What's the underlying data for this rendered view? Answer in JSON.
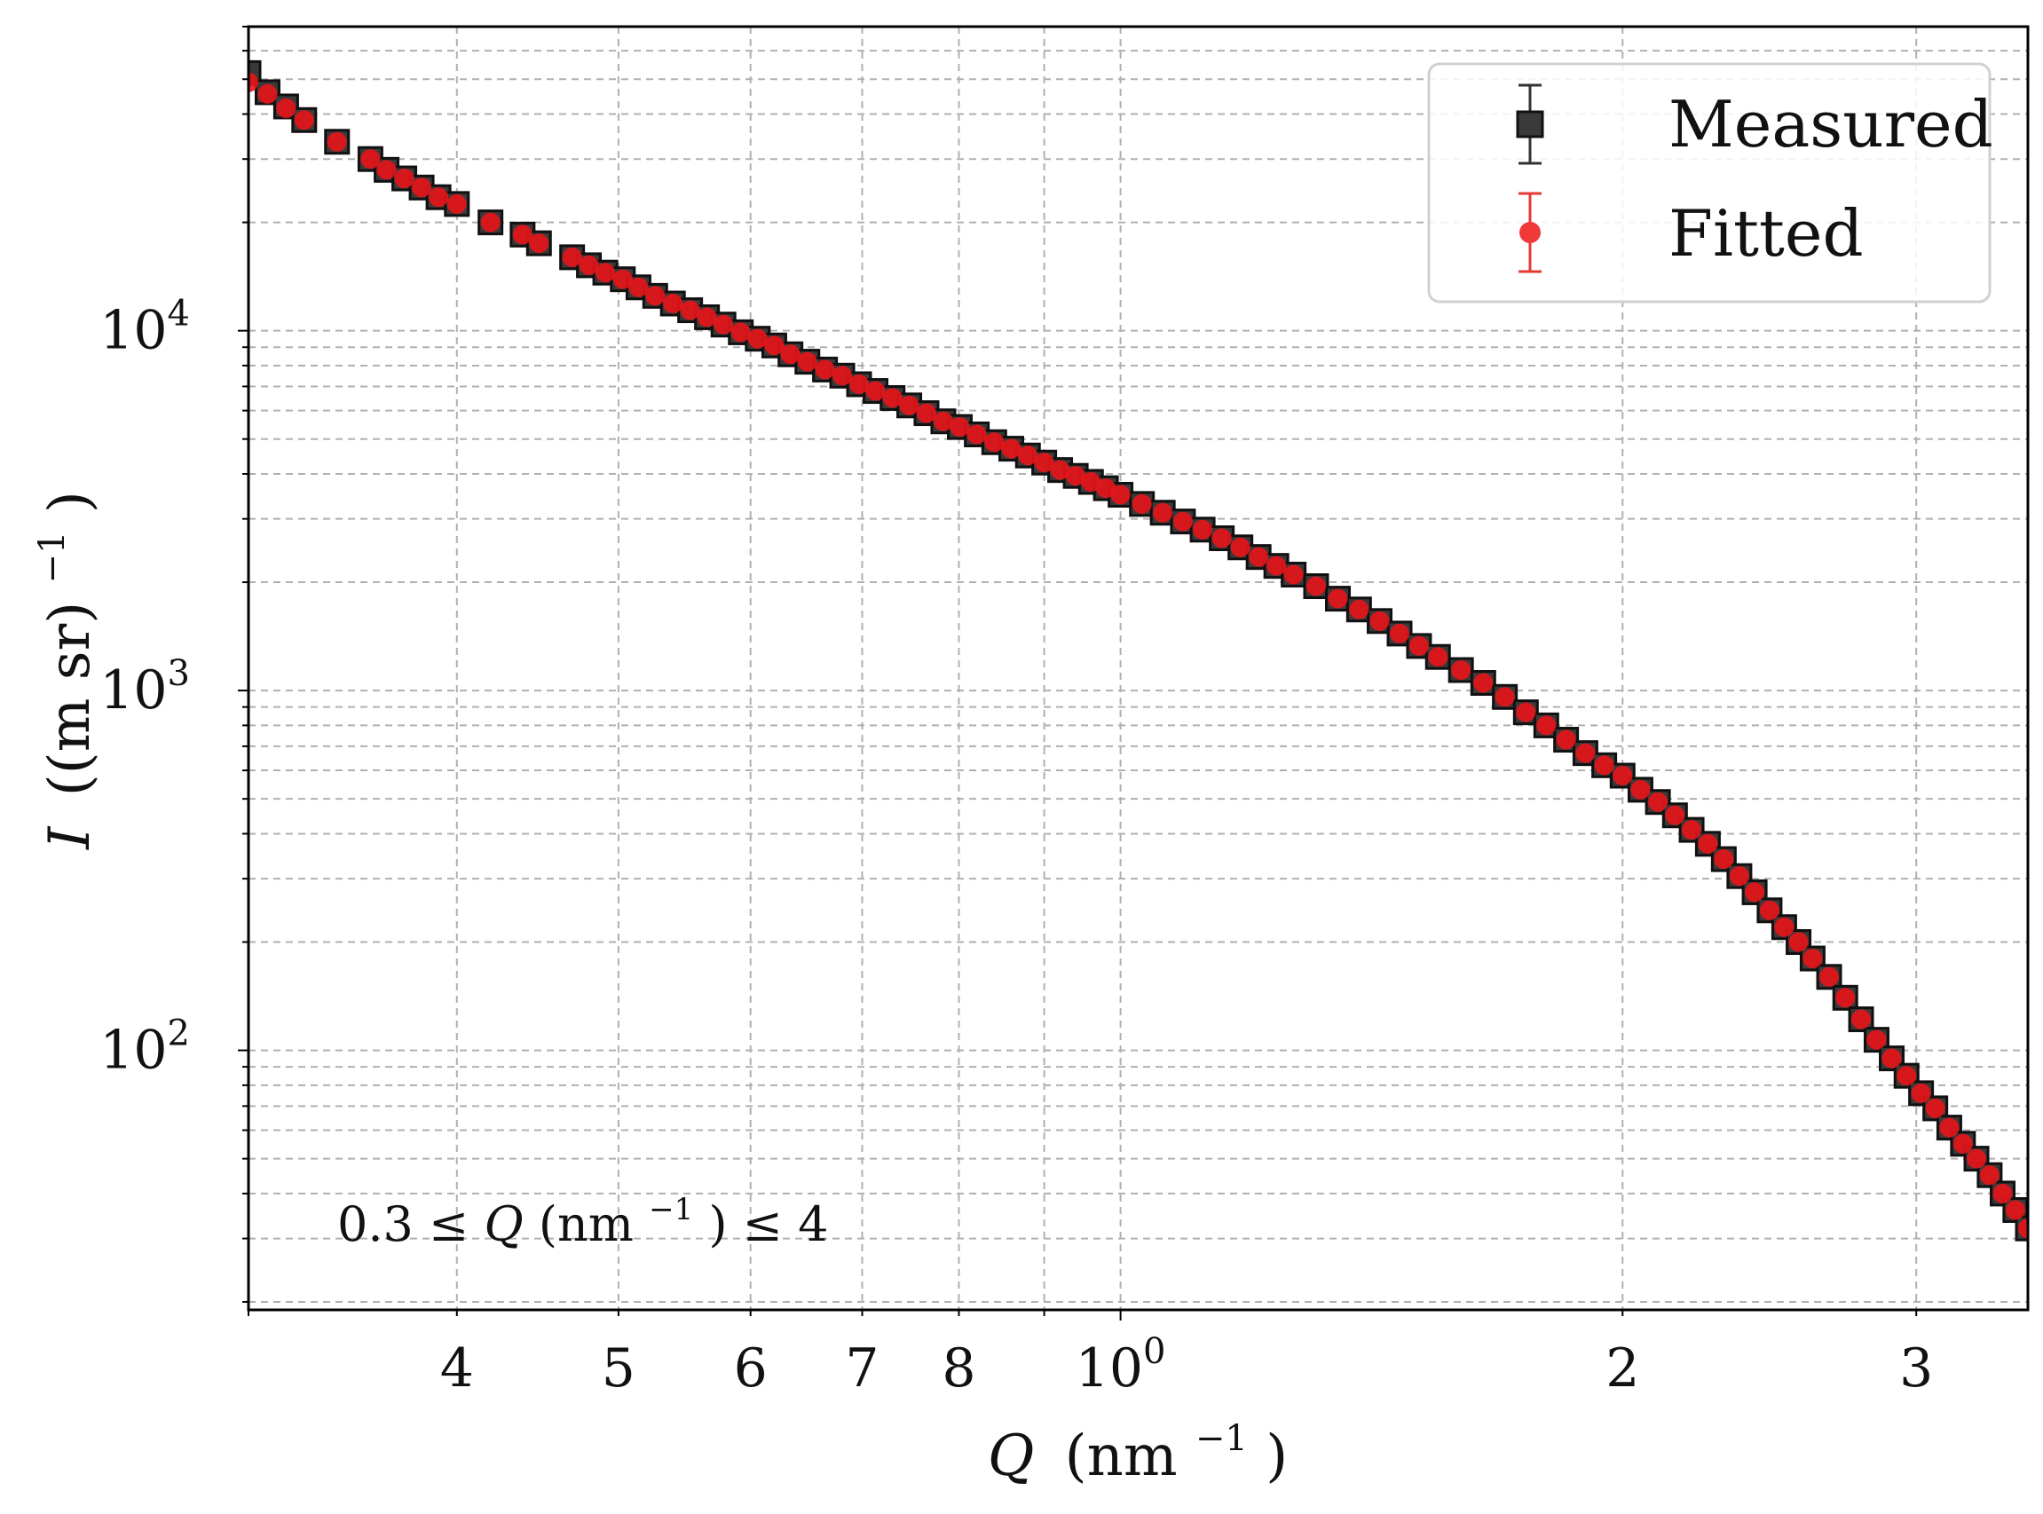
{
  "chart_data": {
    "type": "scatter",
    "xlabel": {
      "var": "Q",
      "unit": "(nm",
      "exp": "−1",
      "close": ")"
    },
    "ylabel": {
      "var": "I",
      "unit": "((m sr)",
      "exp": "−1",
      "close": ")"
    },
    "x_scale": "log",
    "y_scale": "log",
    "xlim": [
      0.3,
      3.5
    ],
    "ylim": [
      19,
      70000
    ],
    "grid": true,
    "legend_position": "top-right",
    "x_ticks": [
      {
        "value": 0.4,
        "label": "4"
      },
      {
        "value": 0.5,
        "label": "5"
      },
      {
        "value": 0.6,
        "label": "6"
      },
      {
        "value": 0.7,
        "label": "7"
      },
      {
        "value": 0.8,
        "label": "8"
      },
      {
        "value": 1.0,
        "base": "10",
        "exp": "0"
      },
      {
        "value": 2.0,
        "label": "2"
      },
      {
        "value": 3.0,
        "label": "3"
      }
    ],
    "y_ticks": [
      {
        "value": 100,
        "base": "10",
        "exp": "2"
      },
      {
        "value": 1000,
        "base": "10",
        "exp": "3"
      },
      {
        "value": 10000,
        "base": "10",
        "exp": "4"
      }
    ],
    "annotation": {
      "prefix": "0.3 ≤ ",
      "var": "Q",
      "unit": " (nm",
      "exp": "−1",
      "suffix": ") ≤ 4"
    },
    "series": [
      {
        "name": "Measured",
        "marker": "square",
        "color": "#1a1a1a",
        "x": [
          0.3,
          0.308,
          0.316,
          0.324,
          0.339,
          0.355,
          0.363,
          0.372,
          0.381,
          0.39,
          0.4,
          0.419,
          0.438,
          0.448,
          0.469,
          0.48,
          0.491,
          0.503,
          0.514,
          0.526,
          0.539,
          0.552,
          0.565,
          0.578,
          0.592,
          0.606,
          0.62,
          0.634,
          0.649,
          0.665,
          0.681,
          0.697,
          0.713,
          0.73,
          0.747,
          0.765,
          0.783,
          0.801,
          0.82,
          0.84,
          0.86,
          0.88,
          0.9,
          0.92,
          0.94,
          0.96,
          0.98,
          1.0,
          1.03,
          1.06,
          1.09,
          1.12,
          1.15,
          1.18,
          1.21,
          1.24,
          1.27,
          1.31,
          1.35,
          1.39,
          1.43,
          1.47,
          1.51,
          1.55,
          1.6,
          1.65,
          1.7,
          1.75,
          1.8,
          1.85,
          1.9,
          1.95,
          2.0,
          2.05,
          2.1,
          2.15,
          2.2,
          2.25,
          2.3,
          2.35,
          2.4,
          2.45,
          2.5,
          2.55,
          2.6,
          2.66,
          2.72,
          2.78,
          2.84,
          2.9,
          2.96,
          3.02,
          3.08,
          3.14,
          3.2,
          3.26,
          3.32,
          3.38,
          3.44,
          3.5
        ],
        "y": [
          52000,
          46000,
          42000,
          38500,
          33500,
          30000,
          28000,
          26500,
          25000,
          23500,
          22500,
          20000,
          18500,
          17500,
          16000,
          15200,
          14500,
          13900,
          13200,
          12500,
          11900,
          11400,
          10900,
          10400,
          9900,
          9500,
          9100,
          8600,
          8200,
          7800,
          7500,
          7100,
          6800,
          6500,
          6200,
          5900,
          5600,
          5400,
          5150,
          4900,
          4700,
          4500,
          4300,
          4100,
          3950,
          3800,
          3650,
          3500,
          3300,
          3120,
          2950,
          2800,
          2650,
          2500,
          2350,
          2220,
          2100,
          1950,
          1800,
          1680,
          1560,
          1440,
          1330,
          1240,
          1140,
          1050,
          960,
          870,
          800,
          730,
          670,
          620,
          580,
          530,
          490,
          450,
          410,
          375,
          340,
          305,
          275,
          245,
          220,
          200,
          180,
          160,
          140,
          122,
          107,
          95,
          85,
          76,
          69,
          61,
          55,
          50,
          45,
          40,
          36,
          32
        ]
      },
      {
        "name": "Fitted",
        "marker": "circle",
        "color": "#e8151b",
        "x": [
          0.3,
          0.308,
          0.316,
          0.324,
          0.339,
          0.355,
          0.363,
          0.372,
          0.381,
          0.39,
          0.4,
          0.419,
          0.438,
          0.448,
          0.469,
          0.48,
          0.491,
          0.503,
          0.514,
          0.526,
          0.539,
          0.552,
          0.565,
          0.578,
          0.592,
          0.606,
          0.62,
          0.634,
          0.649,
          0.665,
          0.681,
          0.697,
          0.713,
          0.73,
          0.747,
          0.765,
          0.783,
          0.801,
          0.82,
          0.84,
          0.86,
          0.88,
          0.9,
          0.92,
          0.94,
          0.96,
          0.98,
          1.0,
          1.03,
          1.06,
          1.09,
          1.12,
          1.15,
          1.18,
          1.21,
          1.24,
          1.27,
          1.31,
          1.35,
          1.39,
          1.43,
          1.47,
          1.51,
          1.55,
          1.6,
          1.65,
          1.7,
          1.75,
          1.8,
          1.85,
          1.9,
          1.95,
          2.0,
          2.05,
          2.1,
          2.15,
          2.2,
          2.25,
          2.3,
          2.35,
          2.4,
          2.45,
          2.5,
          2.55,
          2.6,
          2.66,
          2.72,
          2.78,
          2.84,
          2.9,
          2.96,
          3.02,
          3.08,
          3.14,
          3.2,
          3.26,
          3.32,
          3.38,
          3.44,
          3.5
        ],
        "y": [
          49000,
          45500,
          41500,
          38500,
          33500,
          30000,
          28000,
          26500,
          25000,
          23500,
          22500,
          20000,
          18500,
          17500,
          16000,
          15200,
          14500,
          13900,
          13200,
          12500,
          11900,
          11400,
          10900,
          10400,
          9900,
          9500,
          9100,
          8600,
          8200,
          7800,
          7500,
          7100,
          6800,
          6500,
          6200,
          5900,
          5600,
          5400,
          5150,
          4900,
          4700,
          4500,
          4300,
          4100,
          3950,
          3800,
          3650,
          3500,
          3300,
          3120,
          2950,
          2800,
          2650,
          2500,
          2350,
          2220,
          2100,
          1950,
          1800,
          1680,
          1560,
          1440,
          1330,
          1240,
          1140,
          1050,
          960,
          870,
          800,
          730,
          670,
          620,
          580,
          530,
          490,
          450,
          410,
          375,
          340,
          305,
          275,
          245,
          220,
          200,
          180,
          160,
          140,
          122,
          107,
          95,
          85,
          76,
          69,
          61,
          55,
          50,
          45,
          40,
          36,
          32
        ]
      }
    ]
  }
}
